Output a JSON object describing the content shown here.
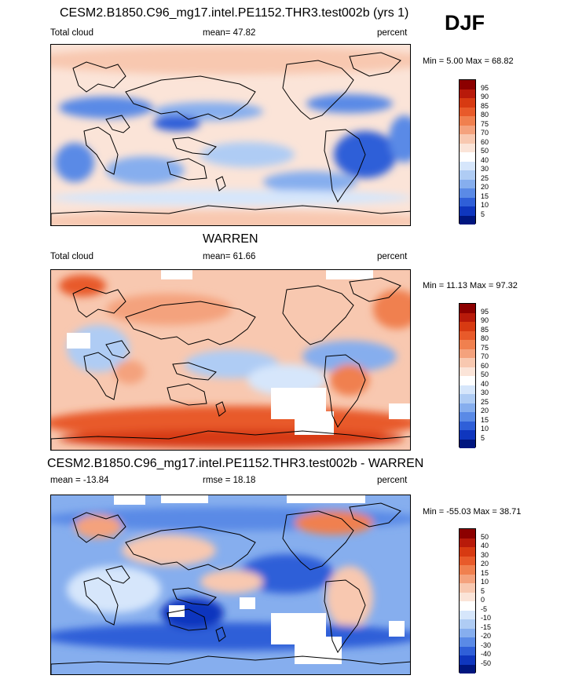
{
  "season": "DJF",
  "panels": [
    {
      "title": "CESM2.B1850.C96_mg17.intel.PE1152.THR3.test002b (yrs 1)",
      "variable": "Total cloud",
      "stat1": "mean=  47.82",
      "stat2": "",
      "units": "percent",
      "minmax": "Min =   5.00 Max =  68.82"
    },
    {
      "title": "WARREN",
      "variable": "Total cloud",
      "stat1": "mean=  61.66",
      "stat2": "",
      "units": "percent",
      "minmax": "Min =  11.13 Max =  97.32"
    },
    {
      "title": "CESM2.B1850.C96_mg17.intel.PE1152.THR3.test002b - WARREN",
      "variable": "",
      "stat1": "mean = -13.84",
      "stat2": "rmse =  18.18",
      "units": "percent",
      "minmax": "Min = -55.03 Max =  38.71"
    }
  ],
  "chart_data": [
    {
      "type": "heatmap",
      "title": "CESM2.B1850.C96_mg17.intel.PE1152.THR3.test002b (yrs 1)",
      "variable": "Total cloud",
      "units": "percent",
      "mean": 47.82,
      "min": 5.0,
      "max": 68.82,
      "colorbar_levels": [
        95,
        90,
        85,
        80,
        75,
        70,
        60,
        50,
        40,
        30,
        25,
        20,
        15,
        10,
        5
      ],
      "colors": [
        "#8c0000",
        "#b81a0a",
        "#d73a12",
        "#e85a2a",
        "#f0804f",
        "#f4a27d",
        "#f8c8b0",
        "#fbe4d8",
        "#ffffff",
        "#d6e6fb",
        "#afccf4",
        "#86aeee",
        "#5a8ae6",
        "#2f5fd8",
        "#0f36be",
        "#00167f"
      ]
    },
    {
      "type": "heatmap",
      "title": "WARREN",
      "variable": "Total cloud",
      "units": "percent",
      "mean": 61.66,
      "min": 11.13,
      "max": 97.32,
      "colorbar_levels": [
        95,
        90,
        85,
        80,
        75,
        70,
        60,
        50,
        40,
        30,
        25,
        20,
        15,
        10,
        5
      ],
      "colors": [
        "#8c0000",
        "#b81a0a",
        "#d73a12",
        "#e85a2a",
        "#f0804f",
        "#f4a27d",
        "#f8c8b0",
        "#fbe4d8",
        "#ffffff",
        "#d6e6fb",
        "#afccf4",
        "#86aeee",
        "#5a8ae6",
        "#2f5fd8",
        "#0f36be",
        "#00167f"
      ]
    },
    {
      "type": "heatmap",
      "title": "CESM2.B1850.C96_mg17.intel.PE1152.THR3.test002b - WARREN",
      "units": "percent",
      "mean": -13.84,
      "rmse": 18.18,
      "min": -55.03,
      "max": 38.71,
      "colorbar_levels": [
        50,
        40,
        30,
        20,
        15,
        10,
        5,
        0,
        -5,
        -10,
        -15,
        -20,
        -30,
        -40,
        -50
      ],
      "colors": [
        "#8c0000",
        "#b81a0a",
        "#d73a12",
        "#e85a2a",
        "#f0804f",
        "#f4a27d",
        "#f8c8b0",
        "#fbe4d8",
        "#ffffff",
        "#d6e6fb",
        "#afccf4",
        "#86aeee",
        "#5a8ae6",
        "#2f5fd8",
        "#0f36be",
        "#00167f"
      ]
    }
  ]
}
